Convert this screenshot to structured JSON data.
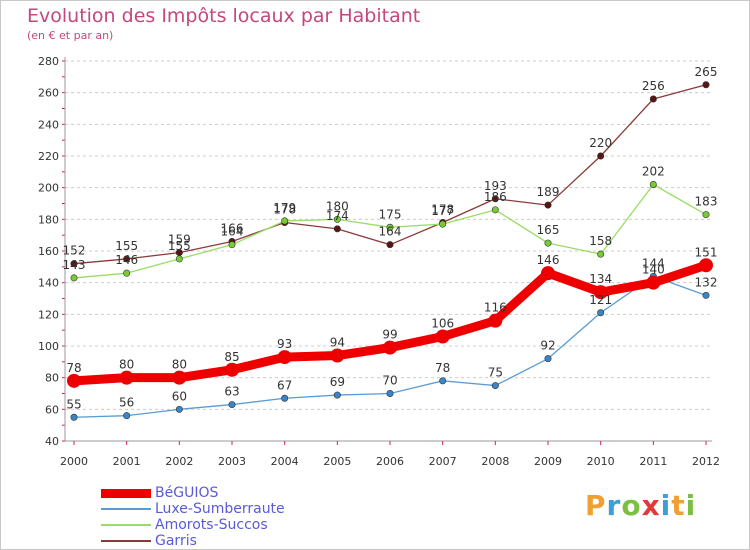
{
  "header": {
    "title": "Evolution des Impôts locaux par Habitant",
    "subtitle": "(en € et par an)"
  },
  "logo": {
    "text": "Proxiti",
    "letters": [
      {
        "ch": "P",
        "color": "#f0a030"
      },
      {
        "ch": "r",
        "color": "#3aa0d8"
      },
      {
        "ch": "o",
        "color": "#7cc040"
      },
      {
        "ch": "x",
        "color": "#e03a3a"
      },
      {
        "ch": "i",
        "color": "#3aa0d8"
      },
      {
        "ch": "t",
        "color": "#f0a030"
      },
      {
        "ch": "i",
        "color": "#7cc040"
      }
    ]
  },
  "colors": {
    "grid": "#cccccc",
    "axis_text": "#333333",
    "axis_tick": "#cc2266",
    "label": "#333333"
  },
  "chart_data": {
    "type": "line",
    "title": "Evolution des Impôts locaux par Habitant",
    "subtitle": "(en € et par an)",
    "x": [
      "2000",
      "2001",
      "2002",
      "2003",
      "2004",
      "2005",
      "2006",
      "2007",
      "2008",
      "2009",
      "2010",
      "2011",
      "2012"
    ],
    "ylim": [
      40,
      280
    ],
    "yticks": [
      40,
      60,
      80,
      100,
      120,
      140,
      160,
      180,
      200,
      220,
      240,
      260,
      280
    ],
    "grid": "horizontal-dashed",
    "legend_position": "bottom-left",
    "series": [
      {
        "name": "BéGUIOS",
        "color": "#ee0000",
        "marker": "#ee0000",
        "width": 9,
        "values": [
          78,
          80,
          80,
          85,
          93,
          94,
          99,
          106,
          116,
          146,
          134,
          140,
          151
        ]
      },
      {
        "name": "Luxe-Sumberraute",
        "color": "#5b9bd5",
        "marker": "#3a84c8",
        "width": 1.3,
        "values": [
          55,
          56,
          60,
          63,
          67,
          69,
          70,
          78,
          75,
          92,
          121,
          144,
          132
        ]
      },
      {
        "name": "Amorots-Succos",
        "color": "#99dd66",
        "marker": "#77cc33",
        "width": 1.3,
        "values": [
          143,
          146,
          155,
          164,
          179,
          180,
          175,
          177,
          186,
          165,
          158,
          202,
          183
        ]
      },
      {
        "name": "Garris",
        "color": "#8b3a3a",
        "marker": "#5a1414",
        "width": 1.3,
        "values": [
          152,
          155,
          159,
          166,
          178,
          174,
          164,
          178,
          193,
          189,
          220,
          256,
          265
        ]
      }
    ]
  }
}
